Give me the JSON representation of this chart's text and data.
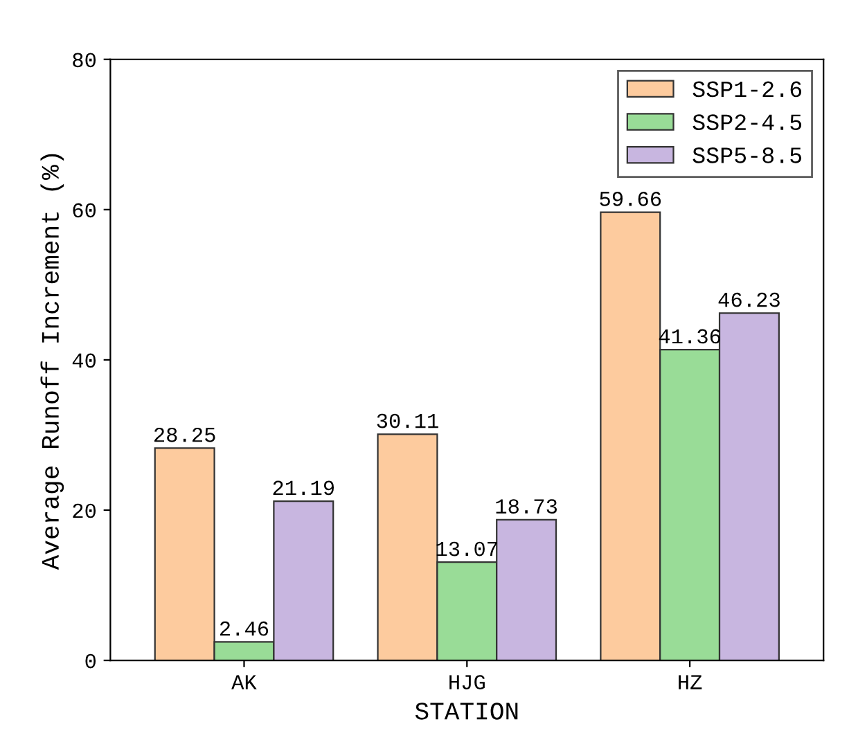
{
  "chart_data": {
    "type": "bar",
    "xlabel": "STATION",
    "ylabel": "Average Runoff Increment (%)",
    "categories": [
      "AK",
      "HJG",
      "HZ"
    ],
    "series": [
      {
        "name": "SSP1-2.6",
        "color": "#fdcb9e",
        "values": [
          28.25,
          30.11,
          59.66
        ]
      },
      {
        "name": "SSP2-4.5",
        "color": "#99dc97",
        "values": [
          2.46,
          13.07,
          41.36
        ]
      },
      {
        "name": "SSP5-8.5",
        "color": "#c8b6e0",
        "values": [
          21.19,
          18.73,
          46.23
        ]
      }
    ],
    "ylim": [
      0,
      80
    ],
    "yticks": [
      0,
      20,
      40,
      60,
      80
    ],
    "data_labels": true,
    "legend": "top right",
    "grid": false
  }
}
